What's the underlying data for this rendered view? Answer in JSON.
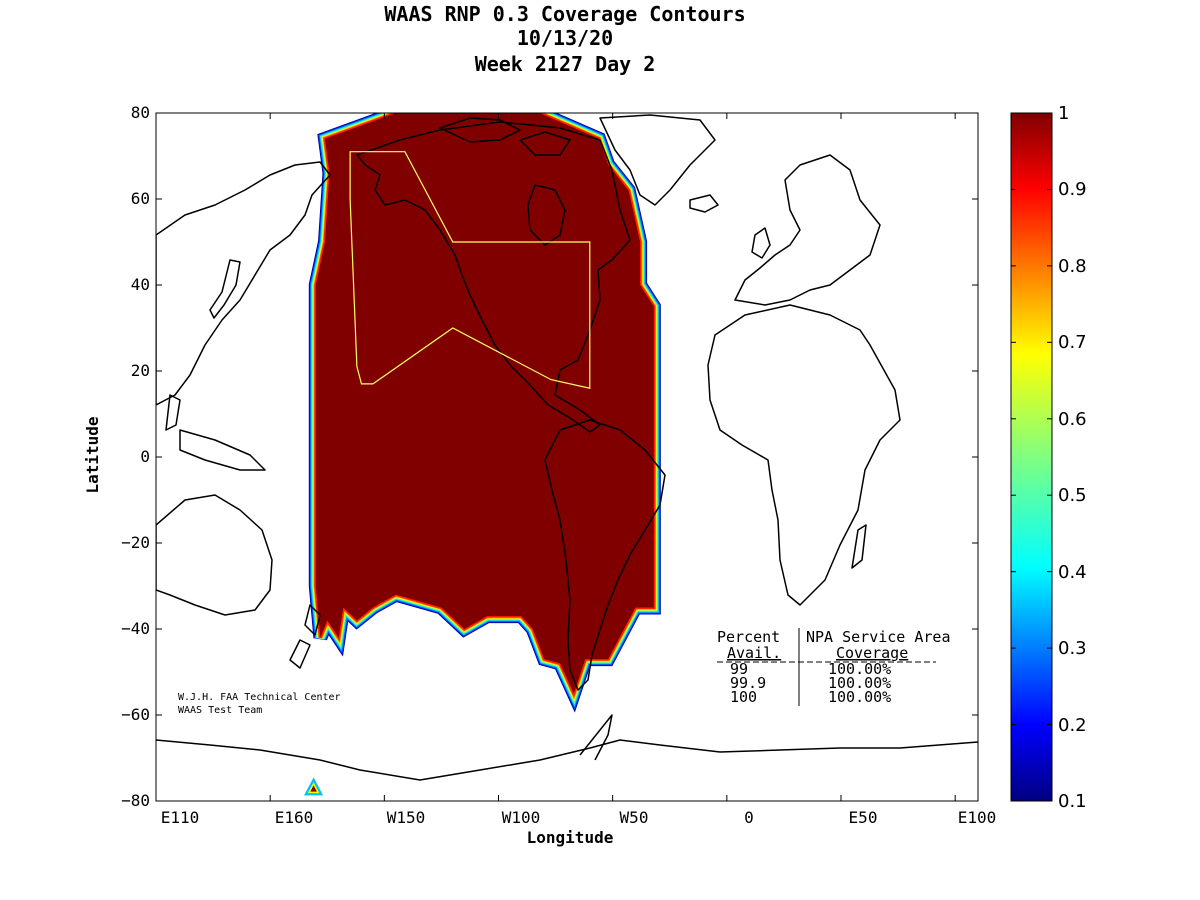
{
  "title": {
    "line1": "WAAS RNP 0.3 Coverage Contours",
    "line2": "10/13/20",
    "line3": "Week 2127 Day 2"
  },
  "axes": {
    "xlabel": "Longitude",
    "ylabel": "Latitude",
    "x_ticks": [
      "E110",
      "E160",
      "W150",
      "W100",
      "W50",
      "0",
      "E50",
      "E100"
    ],
    "y_ticks": [
      "80",
      "60",
      "40",
      "20",
      "0",
      "−20",
      "−40",
      "−60",
      "−80"
    ],
    "x_range_deg_east": [
      110,
      470
    ],
    "y_range_deg": [
      -80,
      80
    ]
  },
  "colorbar": {
    "ticks": [
      "1",
      "0.9",
      "0.8",
      "0.7",
      "0.6",
      "0.5",
      "0.4",
      "0.3",
      "0.2",
      "0.1"
    ],
    "range": [
      0.1,
      1
    ],
    "colormap": "jet"
  },
  "table": {
    "header1_col1": "Percent",
    "header1_col2": "NPA Service Area",
    "header2_col1": "Avail.",
    "header2_col2": "Coverage",
    "rows": [
      {
        "avail": "99",
        "coverage": "100.00%"
      },
      {
        "avail": "99.9",
        "coverage": "100.00%"
      },
      {
        "avail": "100",
        "coverage": "100.00%"
      }
    ]
  },
  "credit": {
    "line1": "W.J.H. FAA Technical Center",
    "line2": "WAAS Test Team"
  },
  "colors": {
    "coverage_fill": "#800000",
    "service_area_outline": "#ffff66",
    "land_outline": "#000000"
  },
  "chart_data": {
    "type": "heatmap",
    "title": "WAAS RNP 0.3 Coverage Contours",
    "xlabel": "Longitude",
    "ylabel": "Latitude",
    "xlim": [
      110,
      470
    ],
    "ylim": [
      -80,
      80
    ],
    "coverage_value_inside": 1.0,
    "colorbar_range": [
      0.1,
      1
    ],
    "coverage_region_lon_lat": [
      [
        -176,
        74
      ],
      [
        -145,
        80
      ],
      [
        -82,
        80
      ],
      [
        -56,
        74
      ],
      [
        -52,
        68
      ],
      [
        -43,
        62
      ],
      [
        -38,
        50
      ],
      [
        -38,
        40
      ],
      [
        -32,
        35
      ],
      [
        -32,
        -35
      ],
      [
        -40,
        -35
      ],
      [
        -52,
        -47
      ],
      [
        -62,
        -47
      ],
      [
        -67,
        -55
      ],
      [
        -73,
        -48
      ],
      [
        -80,
        -47
      ],
      [
        -85,
        -40
      ],
      [
        -90,
        -37
      ],
      [
        -105,
        -37
      ],
      [
        -115,
        -40
      ],
      [
        -125,
        -35
      ],
      [
        -145,
        -32
      ],
      [
        -155,
        -35
      ],
      [
        -162,
        -38
      ],
      [
        -168,
        -35
      ],
      [
        -170,
        -42
      ],
      [
        -175,
        -38
      ],
      [
        -178,
        -42
      ],
      [
        -180,
        -30
      ],
      [
        -180,
        40
      ],
      [
        -176,
        50
      ],
      [
        -174,
        66
      ]
    ],
    "service_area_lon_lat": [
      [
        -165,
        71
      ],
      [
        -141,
        71
      ],
      [
        -120,
        50
      ],
      [
        -60,
        50
      ],
      [
        -60,
        16
      ],
      [
        -77,
        18
      ],
      [
        -120,
        30
      ],
      [
        -155,
        17
      ],
      [
        -160,
        17
      ],
      [
        -162,
        21
      ],
      [
        -165,
        60
      ]
    ],
    "small_region_lon_lat": [
      [
        -183,
        -78
      ],
      [
        -179,
        -78
      ],
      [
        -181,
        -76
      ]
    ]
  }
}
